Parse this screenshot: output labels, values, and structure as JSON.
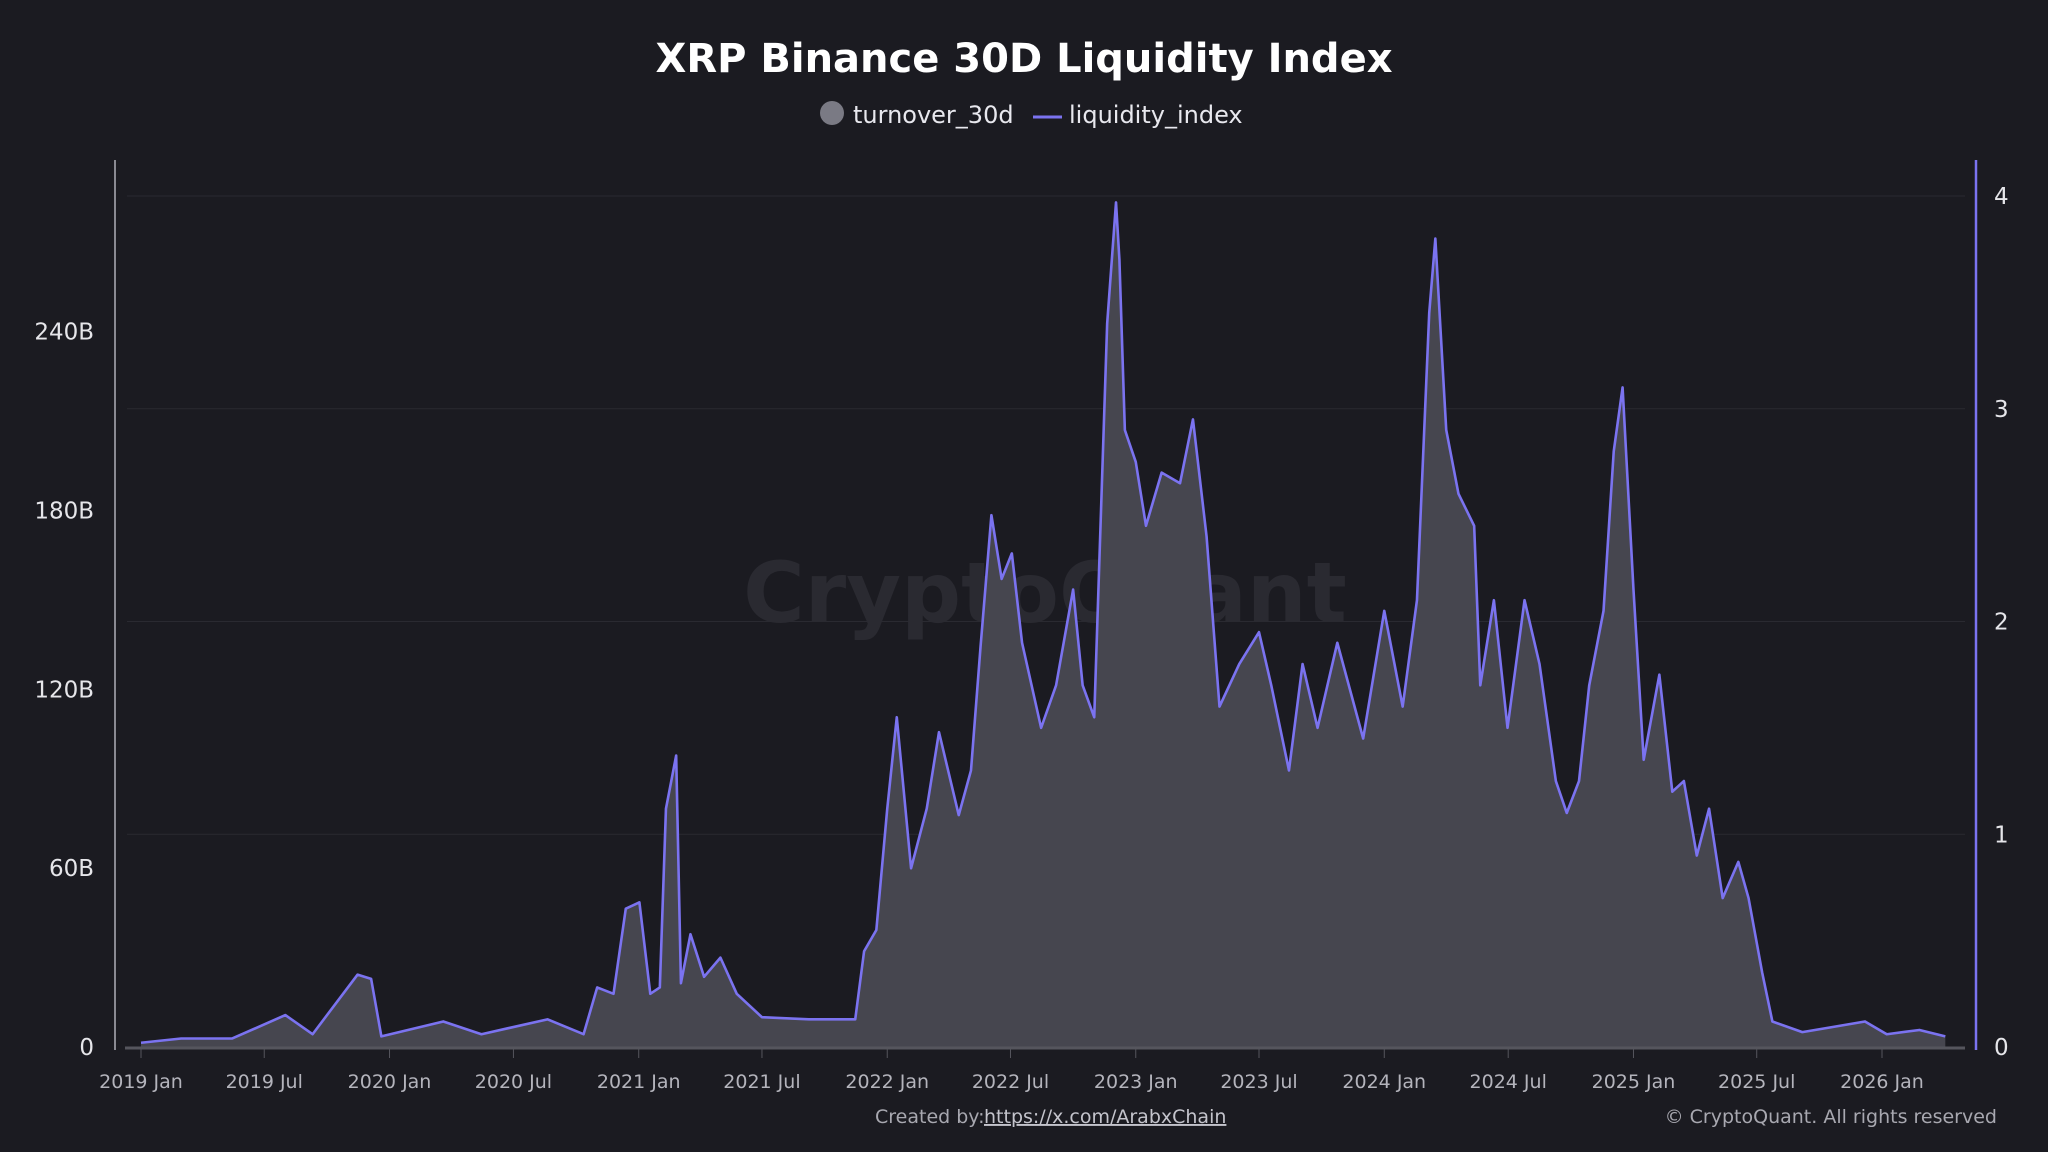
{
  "chart_data": {
    "type": "area+line",
    "title": "XRP Binance 30D Liquidity Index",
    "watermark": "CryptoQuant",
    "legend": {
      "placement": "top-center",
      "items": [
        {
          "name": "turnover_30d",
          "symbol": "circle",
          "color": "#7a7a84"
        },
        {
          "name": "liquidity_index",
          "symbol": "line",
          "color": "#7b73f0"
        }
      ]
    },
    "x_axis": {
      "type": "date",
      "range": [
        "2018-12-15",
        "2026-05-01"
      ],
      "tick_labels": [
        "2019 Jan",
        "2019 Jul",
        "2020 Jan",
        "2020 Jul",
        "2021 Jan",
        "2021 Jul",
        "2022 Jan",
        "2022 Jul",
        "2023 Jan",
        "2023 Jul",
        "2024 Jan",
        "2024 Jul",
        "2025 Jan",
        "2025 Jul",
        "2026 Jan"
      ],
      "tick_dates": [
        "2019-01-01",
        "2019-07-01",
        "2020-01-01",
        "2020-07-01",
        "2021-01-01",
        "2021-07-01",
        "2022-01-01",
        "2022-07-01",
        "2023-01-01",
        "2023-07-01",
        "2024-01-01",
        "2024-07-01",
        "2025-01-01",
        "2025-07-01",
        "2026-01-01"
      ]
    },
    "y_left": {
      "series": "turnover_30d",
      "range": [
        0,
        285.5
      ],
      "unit": "B",
      "tick_values": [
        0,
        60,
        120,
        180,
        240
      ],
      "tick_labels": [
        "0",
        "60B",
        "120B",
        "180B",
        "240B"
      ]
    },
    "y_right": {
      "series": "liquidity_index",
      "range": [
        0,
        4
      ],
      "tick_values": [
        0,
        1,
        2,
        3,
        4
      ],
      "tick_labels": [
        "0",
        "1",
        "2",
        "3",
        "4"
      ],
      "color": "#7b73f0"
    },
    "grid": true,
    "colors": {
      "background": "#1b1b21",
      "area": "#46464f",
      "line": "#7b73f0",
      "grid": "#2a2a31"
    },
    "columns": [
      "date",
      "turnover_30d_B",
      "liquidity_index"
    ],
    "rows": [
      [
        "2019-01-01",
        1.4,
        0.02
      ],
      [
        "2019-03-01",
        2.9,
        0.04
      ],
      [
        "2019-05-15",
        2.9,
        0.04
      ],
      [
        "2019-08-01",
        10.7,
        0.15
      ],
      [
        "2019-09-10",
        4.3,
        0.06
      ],
      [
        "2019-11-15",
        24.3,
        0.34
      ],
      [
        "2019-12-05",
        22.8,
        0.32
      ],
      [
        "2019-12-20",
        3.6,
        0.05
      ],
      [
        "2020-03-20",
        8.6,
        0.12
      ],
      [
        "2020-05-15",
        4.3,
        0.06
      ],
      [
        "2020-08-20",
        9.3,
        0.13
      ],
      [
        "2020-10-12",
        4.3,
        0.06
      ],
      [
        "2020-11-01",
        20.0,
        0.28
      ],
      [
        "2020-11-25",
        17.9,
        0.25
      ],
      [
        "2020-12-13",
        46.4,
        0.65
      ],
      [
        "2021-01-02",
        48.6,
        0.68
      ],
      [
        "2021-01-18",
        17.9,
        0.25
      ],
      [
        "2021-02-01",
        20.0,
        0.28
      ],
      [
        "2021-02-10",
        80.0,
        1.12
      ],
      [
        "2021-02-25",
        97.8,
        1.37
      ],
      [
        "2021-03-04",
        21.4,
        0.3
      ],
      [
        "2021-03-18",
        37.8,
        0.53
      ],
      [
        "2021-04-07",
        23.6,
        0.33
      ],
      [
        "2021-05-01",
        30.0,
        0.42
      ],
      [
        "2021-05-25",
        17.9,
        0.25
      ],
      [
        "2021-07-01",
        10.0,
        0.14
      ],
      [
        "2021-09-08",
        9.3,
        0.13
      ],
      [
        "2021-11-15",
        9.3,
        0.13
      ],
      [
        "2021-11-28",
        32.1,
        0.45
      ],
      [
        "2021-12-16",
        39.3,
        0.55
      ],
      [
        "2022-01-01",
        80.0,
        1.12
      ],
      [
        "2022-01-15",
        110.7,
        1.55
      ],
      [
        "2022-02-05",
        60.0,
        0.84
      ],
      [
        "2022-02-28",
        80.0,
        1.12
      ],
      [
        "2022-03-18",
        105.7,
        1.48
      ],
      [
        "2022-04-16",
        77.8,
        1.09
      ],
      [
        "2022-05-04",
        92.8,
        1.3
      ],
      [
        "2022-05-18",
        134.2,
        1.88
      ],
      [
        "2022-06-03",
        178.5,
        2.5
      ],
      [
        "2022-06-18",
        157.1,
        2.2
      ],
      [
        "2022-07-03",
        165.6,
        2.32
      ],
      [
        "2022-07-18",
        135.7,
        1.9
      ],
      [
        "2022-08-15",
        107.1,
        1.5
      ],
      [
        "2022-09-06",
        121.4,
        1.7
      ],
      [
        "2022-10-01",
        153.5,
        2.15
      ],
      [
        "2022-10-15",
        121.4,
        1.7
      ],
      [
        "2022-11-01",
        110.7,
        1.55
      ],
      [
        "2022-11-20",
        242.8,
        3.4
      ],
      [
        "2022-12-03",
        283.5,
        3.97
      ],
      [
        "2022-12-08",
        264.2,
        3.7
      ],
      [
        "2022-12-16",
        207.1,
        2.9
      ],
      [
        "2023-01-01",
        196.4,
        2.75
      ],
      [
        "2023-01-16",
        174.9,
        2.45
      ],
      [
        "2023-02-08",
        192.8,
        2.7
      ],
      [
        "2023-03-07",
        189.2,
        2.65
      ],
      [
        "2023-03-26",
        210.6,
        2.95
      ],
      [
        "2023-04-15",
        171.4,
        2.4
      ],
      [
        "2023-05-04",
        114.2,
        1.6
      ],
      [
        "2023-06-02",
        128.5,
        1.8
      ],
      [
        "2023-07-01",
        139.2,
        1.95
      ],
      [
        "2023-07-19",
        121.4,
        1.7
      ],
      [
        "2023-08-14",
        92.8,
        1.3
      ],
      [
        "2023-09-03",
        128.5,
        1.8
      ],
      [
        "2023-09-25",
        107.1,
        1.5
      ],
      [
        "2023-10-24",
        135.7,
        1.9
      ],
      [
        "2023-12-01",
        103.5,
        1.45
      ],
      [
        "2024-01-01",
        146.4,
        2.05
      ],
      [
        "2024-01-28",
        114.2,
        1.6
      ],
      [
        "2024-02-18",
        149.9,
        2.1
      ],
      [
        "2024-03-07",
        246.3,
        3.45
      ],
      [
        "2024-03-16",
        271.3,
        3.8
      ],
      [
        "2024-04-01",
        207.1,
        2.9
      ],
      [
        "2024-04-19",
        185.6,
        2.6
      ],
      [
        "2024-05-12",
        174.9,
        2.45
      ],
      [
        "2024-05-21",
        121.4,
        1.7
      ],
      [
        "2024-06-10",
        149.9,
        2.1
      ],
      [
        "2024-06-30",
        107.1,
        1.5
      ],
      [
        "2024-07-25",
        149.9,
        2.1
      ],
      [
        "2024-08-16",
        128.5,
        1.8
      ],
      [
        "2024-09-09",
        89.3,
        1.25
      ],
      [
        "2024-09-25",
        78.5,
        1.1
      ],
      [
        "2024-10-13",
        89.3,
        1.25
      ],
      [
        "2024-10-28",
        121.4,
        1.7
      ],
      [
        "2024-11-18",
        146.4,
        2.05
      ],
      [
        "2024-12-03",
        199.9,
        2.8
      ],
      [
        "2024-12-16",
        221.3,
        3.1
      ],
      [
        "2025-01-01",
        153.5,
        2.15
      ],
      [
        "2025-01-16",
        96.4,
        1.35
      ],
      [
        "2025-02-08",
        125.0,
        1.75
      ],
      [
        "2025-02-27",
        85.7,
        1.2
      ],
      [
        "2025-03-16",
        89.3,
        1.25
      ],
      [
        "2025-04-04",
        64.3,
        0.9
      ],
      [
        "2025-04-22",
        80.0,
        1.12
      ],
      [
        "2025-05-12",
        50.0,
        0.7
      ],
      [
        "2025-06-04",
        62.1,
        0.87
      ],
      [
        "2025-06-19",
        50.0,
        0.7
      ],
      [
        "2025-07-09",
        25.0,
        0.35
      ],
      [
        "2025-07-24",
        8.6,
        0.12
      ],
      [
        "2025-09-06",
        5.0,
        0.07
      ],
      [
        "2025-10-13",
        6.4,
        0.09
      ],
      [
        "2025-12-07",
        8.6,
        0.12
      ],
      [
        "2026-01-08",
        4.3,
        0.06
      ],
      [
        "2026-02-25",
        5.7,
        0.08
      ],
      [
        "2026-04-04",
        3.6,
        0.05
      ]
    ]
  },
  "footer": {
    "created_by_label": "Created by:",
    "created_by_link": "https://x.com/ArabxChain",
    "copyright": "© CryptoQuant. All rights reserved"
  }
}
